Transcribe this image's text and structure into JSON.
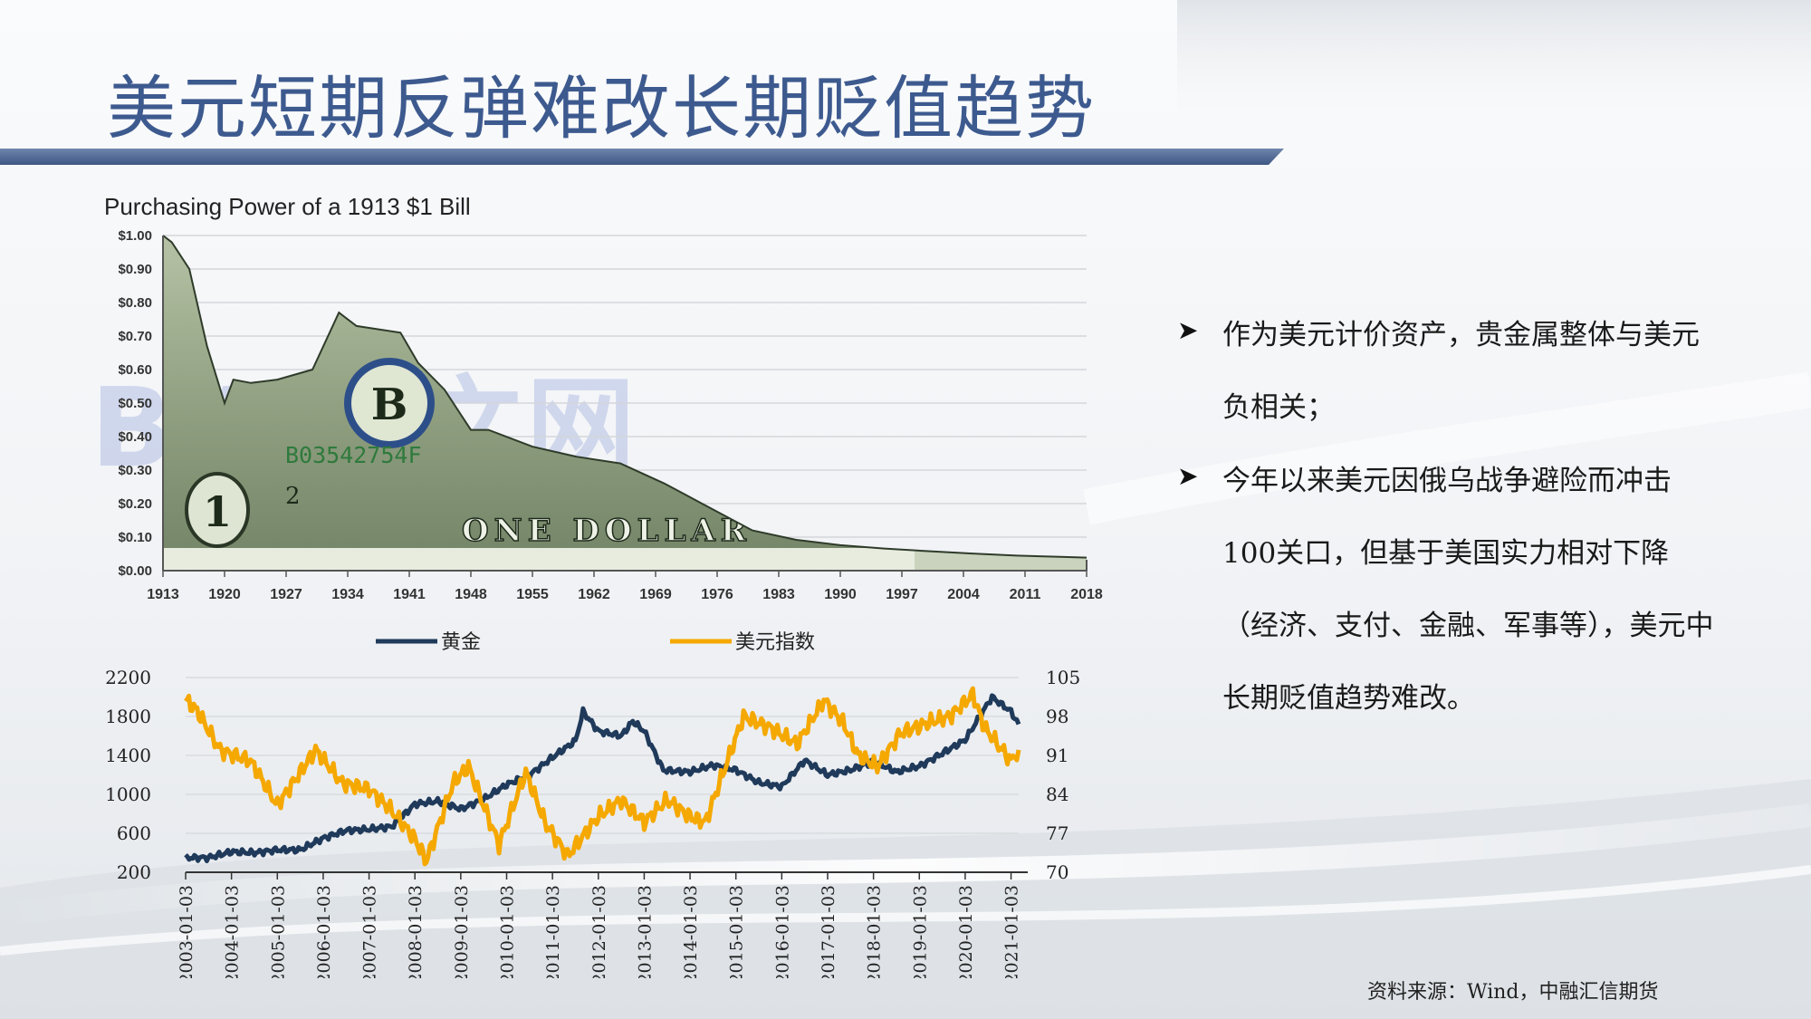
{
  "page": {
    "title": "美元短期反弹难改长期贬值趋势",
    "source": "资料来源：Wind，中融汇信期货",
    "watermark": "BW中文网"
  },
  "bullets": [
    "作为美元计价资产，贵金属整体与美元负相关；",
    "今年以来美元因俄乌战争避险而冲击100关口，但基于美国实力相对下降（经济、支付、金融、军事等），美元中长期贬值趋势难改。"
  ],
  "bill": {
    "serial": "B03542754F",
    "seal_letter": "B",
    "corner_numeral": "1",
    "denomination_text": "ONE DOLLAR",
    "small_numeral": "2"
  },
  "colors": {
    "title": "#3d5a8f",
    "gold_line": "#1f3a5a",
    "usd_line": "#f5a800",
    "title_bar": "#4a6290"
  },
  "chart_data": [
    {
      "type": "area",
      "title": "Purchasing Power of a 1913 $1 Bill",
      "x": [
        1913,
        1914,
        1916,
        1918,
        1920,
        1921,
        1923,
        1926,
        1930,
        1933,
        1935,
        1940,
        1942,
        1945,
        1948,
        1950,
        1955,
        1960,
        1965,
        1970,
        1975,
        1980,
        1985,
        1990,
        1995,
        2000,
        2005,
        2010,
        2015,
        2018
      ],
      "y": [
        1.0,
        0.98,
        0.9,
        0.67,
        0.5,
        0.57,
        0.56,
        0.57,
        0.6,
        0.77,
        0.73,
        0.71,
        0.62,
        0.54,
        0.42,
        0.42,
        0.37,
        0.34,
        0.32,
        0.26,
        0.19,
        0.12,
        0.092,
        0.076,
        0.066,
        0.058,
        0.051,
        0.045,
        0.041,
        0.039
      ],
      "xticks": [
        "1913",
        "1920",
        "1927",
        "1934",
        "1941",
        "1948",
        "1955",
        "1962",
        "1969",
        "1976",
        "1983",
        "1990",
        "1997",
        "2004",
        "2011",
        "2018"
      ],
      "yticks": [
        "$0.00",
        "$0.10",
        "$0.20",
        "$0.30",
        "$0.40",
        "$0.50",
        "$0.60",
        "$0.70",
        "$0.80",
        "$0.90",
        "$1.00"
      ],
      "xlim": [
        1913,
        2018
      ],
      "ylim": [
        0,
        1.0
      ],
      "grid": true
    },
    {
      "type": "line",
      "legend_position": "top",
      "series": [
        {
          "name": "黄金",
          "axis": "left",
          "x": [
            "2003-01",
            "2003-07",
            "2004-01",
            "2004-07",
            "2005-01",
            "2005-07",
            "2006-01",
            "2006-07",
            "2007-01",
            "2007-07",
            "2008-01",
            "2008-07",
            "2009-01",
            "2009-07",
            "2010-01",
            "2010-07",
            "2011-01",
            "2011-07",
            "2011-09",
            "2012-01",
            "2012-07",
            "2012-10",
            "2013-01",
            "2013-06",
            "2014-01",
            "2014-07",
            "2015-01",
            "2015-07",
            "2016-01",
            "2016-07",
            "2017-01",
            "2017-07",
            "2018-01",
            "2018-07",
            "2019-01",
            "2019-07",
            "2020-01",
            "2020-08",
            "2021-01",
            "2021-03"
          ],
          "values": [
            350,
            350,
            410,
            400,
            430,
            430,
            550,
            630,
            640,
            670,
            900,
            930,
            850,
            950,
            1100,
            1200,
            1380,
            1550,
            1850,
            1650,
            1600,
            1750,
            1650,
            1250,
            1230,
            1300,
            1250,
            1120,
            1080,
            1350,
            1200,
            1250,
            1340,
            1230,
            1290,
            1420,
            1560,
            2000,
            1850,
            1720
          ]
        },
        {
          "name": "美元指数",
          "axis": "right",
          "x": [
            "2003-01",
            "2003-04",
            "2003-10",
            "2004-06",
            "2005-01",
            "2005-11",
            "2006-06",
            "2007-01",
            "2007-07",
            "2008-01",
            "2008-04",
            "2008-11",
            "2009-03",
            "2009-11",
            "2010-06",
            "2010-11",
            "2011-05",
            "2012-01",
            "2012-07",
            "2013-01",
            "2013-07",
            "2014-01",
            "2014-05",
            "2015-03",
            "2015-10",
            "2016-05",
            "2016-12",
            "2017-05",
            "2017-09",
            "2018-02",
            "2018-08",
            "2019-04",
            "2019-09",
            "2020-03",
            "2020-06",
            "2021-01",
            "2021-03"
          ],
          "values": [
            101,
            99,
            92,
            90,
            82,
            92,
            86,
            85,
            81,
            76,
            72,
            86,
            89,
            75,
            88,
            79,
            73,
            80,
            83,
            79,
            83,
            80,
            79,
            98,
            96,
            93,
            101,
            97,
            91,
            89,
            95,
            97,
            98,
            102,
            96,
            90,
            92
          ]
        }
      ],
      "left_ylim": [
        200,
        2200
      ],
      "right_ylim": [
        70,
        105
      ],
      "left_yticks": [
        "2200",
        "1800",
        "1400",
        "1000",
        "600",
        "200"
      ],
      "right_yticks": [
        "105",
        "98",
        "91",
        "84",
        "77",
        "70"
      ],
      "xticks": [
        "2003-01-03",
        "2004-01-03",
        "2005-01-03",
        "2006-01-03",
        "2007-01-03",
        "2008-01-03",
        "2009-01-03",
        "2010-01-03",
        "2011-01-03",
        "2012-01-03",
        "2013-01-03",
        "2014-01-03",
        "2015-01-03",
        "2016-01-03",
        "2017-01-03",
        "2018-01-03",
        "2019-01-03",
        "2020-01-03",
        "2021-01-03"
      ],
      "xlim": [
        "2003-01",
        "2021-03"
      ],
      "grid": true
    }
  ]
}
